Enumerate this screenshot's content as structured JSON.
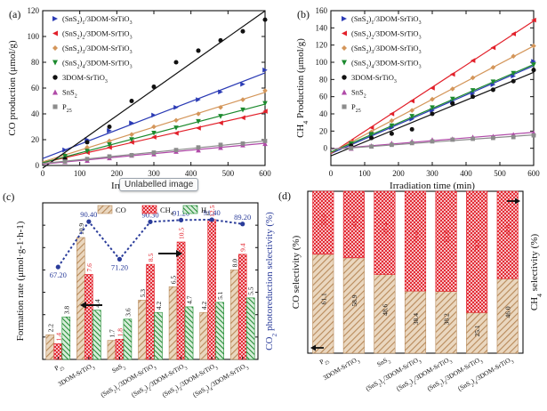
{
  "tooltip": "Unlabelled image",
  "colors": {
    "series": [
      "#2b3bb5",
      "#e2202a",
      "#d4965a",
      "#1c8a2e",
      "#111111",
      "#b04aa8",
      "#8c8c8c"
    ],
    "co_bar": "#b88a5a",
    "ch4_bar": "#e2202a",
    "h2_bar": "#1c8a2e",
    "selectivity_line": "#2a3c9a"
  },
  "chart_data": [
    {
      "panel": "(a)",
      "type": "scatter",
      "xlabel": "Irradiation time (min)",
      "ylabel": "CO production (μmol/g)",
      "xlim": [
        0,
        600
      ],
      "ylim": [
        0,
        120
      ],
      "xticks": [
        0,
        100,
        200,
        300,
        400,
        500,
        600
      ],
      "yticks": [
        0,
        20,
        40,
        60,
        80,
        100,
        120
      ],
      "x": [
        0,
        60,
        120,
        180,
        240,
        300,
        360,
        420,
        480,
        540,
        600
      ],
      "series": [
        {
          "name": "(SnS2)1/3DOM-SrTiO3",
          "marker": "tri-right",
          "values": [
            3,
            12,
            20,
            27,
            33,
            39,
            45,
            51,
            57,
            63,
            74
          ]
        },
        {
          "name": "(SnS2)2/3DOM-SrTiO3",
          "marker": "tri-left",
          "values": [
            2,
            6,
            10,
            14,
            18,
            22,
            25,
            29,
            33,
            37,
            42
          ]
        },
        {
          "name": "(SnS2)3/3DOM-SrTiO3",
          "marker": "diamond",
          "values": [
            3,
            8,
            14,
            19,
            24,
            30,
            35,
            40,
            45,
            51,
            58
          ]
        },
        {
          "name": "(SnS2)4/3DOM-SrTiO3",
          "marker": "tri-down",
          "values": [
            2,
            7,
            11,
            16,
            20,
            25,
            29,
            34,
            38,
            43,
            48
          ]
        },
        {
          "name": "3DOM-SrTiO3",
          "marker": "circle",
          "values": [
            1,
            5,
            18,
            30,
            50,
            61,
            80,
            89,
            97,
            104,
            113
          ]
        },
        {
          "name": "SnS2",
          "marker": "tri-up",
          "values": [
            1,
            3,
            4,
            6,
            8,
            9,
            11,
            12,
            14,
            16,
            17
          ]
        },
        {
          "name": "P25",
          "marker": "square",
          "values": [
            2,
            3,
            5,
            7,
            8,
            10,
            12,
            14,
            16,
            17,
            19
          ]
        }
      ]
    },
    {
      "panel": "(b)",
      "type": "scatter",
      "xlabel": "Irradiation time (min)",
      "ylabel": "CH4 Production (μmol/g)",
      "xlim": [
        0,
        600
      ],
      "ylim": [
        -20,
        160
      ],
      "xticks": [
        0,
        100,
        200,
        300,
        400,
        500,
        600
      ],
      "yticks": [
        0,
        20,
        40,
        60,
        80,
        100,
        120,
        140,
        160
      ],
      "x": [
        0,
        60,
        120,
        180,
        240,
        300,
        360,
        420,
        480,
        540,
        600
      ],
      "series": [
        {
          "name": "(SnS2)1/3DOM-SrTiO3",
          "marker": "tri-right",
          "values": [
            -5,
            5,
            15,
            24,
            34,
            44,
            54,
            64,
            74,
            84,
            101
          ]
        },
        {
          "name": "(SnS2)2/3DOM-SrTiO3",
          "marker": "tri-left",
          "values": [
            -3,
            8,
            24,
            40,
            55,
            70,
            86,
            102,
            117,
            133,
            149
          ]
        },
        {
          "name": "(SnS2)3/3DOM-SrTiO3",
          "marker": "diamond",
          "values": [
            -4,
            7,
            19,
            32,
            44,
            57,
            69,
            82,
            94,
            107,
            119
          ]
        },
        {
          "name": "(SnS2)4/3DOM-SrTiO3",
          "marker": "tri-down",
          "values": [
            -5,
            5,
            16,
            26,
            37,
            47,
            57,
            67,
            77,
            87,
            97
          ]
        },
        {
          "name": "3DOM-SrTiO3",
          "marker": "circle",
          "values": [
            -6,
            3,
            12,
            17,
            22,
            40,
            52,
            60,
            68,
            78,
            91
          ]
        },
        {
          "name": "SnS2",
          "marker": "tri-up",
          "values": [
            -2,
            0,
            3,
            6,
            8,
            10,
            11,
            13,
            14,
            16,
            18
          ]
        },
        {
          "name": "P25",
          "marker": "square",
          "values": [
            -2,
            0,
            2,
            4,
            6,
            8,
            10,
            11,
            12,
            13,
            15
          ]
        }
      ]
    },
    {
      "panel": "(c)",
      "type": "bar",
      "ylabel": "Formation rate (μmol·g-1·h-1)",
      "y2label": "CO2 photoreduction selectivity (%)",
      "categories": [
        "P25",
        "3DOM-SrTiO3",
        "SnS2",
        "(SnS2)1/3DOM-SrTiO3",
        "(SnS2)2/3DOM-SrTiO3",
        "(SnS2)3/3DOM-SrTiO3",
        "(SnS2)4/3DOM-SrTiO3"
      ],
      "series": [
        {
          "name": "CO",
          "values": [
            2.2,
            10.9,
            1.7,
            5.3,
            6.5,
            4.2,
            8.0
          ]
        },
        {
          "name": "CH4",
          "values": [
            1.4,
            7.6,
            1.8,
            8.5,
            10.5,
            12.5,
            9.4
          ]
        },
        {
          "name": "H2",
          "values": [
            3.8,
            4.4,
            3.6,
            4.2,
            4.7,
            5.1,
            5.5
          ]
        }
      ],
      "selectivity": [
        67.2,
        90.4,
        71.2,
        90.3,
        91.2,
        91.4,
        89.2
      ],
      "selectivity_labels": [
        "67.20",
        "90.40",
        "71.20",
        "90.30",
        "91.20",
        "91.40",
        "89.20"
      ],
      "ylim": [
        0,
        14
      ]
    },
    {
      "panel": "(d)",
      "type": "bar",
      "stacked": true,
      "ylabel": "CO selectivity (%)",
      "y2label": "CH4 selectivity (%)",
      "categories": [
        "P25",
        "3DOM-SrTiO3",
        "SnS2",
        "(SnS2)1/3DOM-SrTiO3",
        "(SnS2)2/3DOM-SrTiO3",
        "(SnS2)3/3DOM-SrTiO3",
        "(SnS2)4/3DOM-SrTiO3"
      ],
      "series": [
        {
          "name": "CO",
          "values": [
            61.1,
            58.9,
            48.6,
            38.4,
            38.2,
            25.1,
            46.0
          ]
        },
        {
          "name": "CH4",
          "values": [
            38.9,
            41.1,
            51.4,
            61.6,
            61.8,
            74.9,
            54.0
          ]
        }
      ],
      "ylim": [
        0,
        100
      ]
    }
  ]
}
